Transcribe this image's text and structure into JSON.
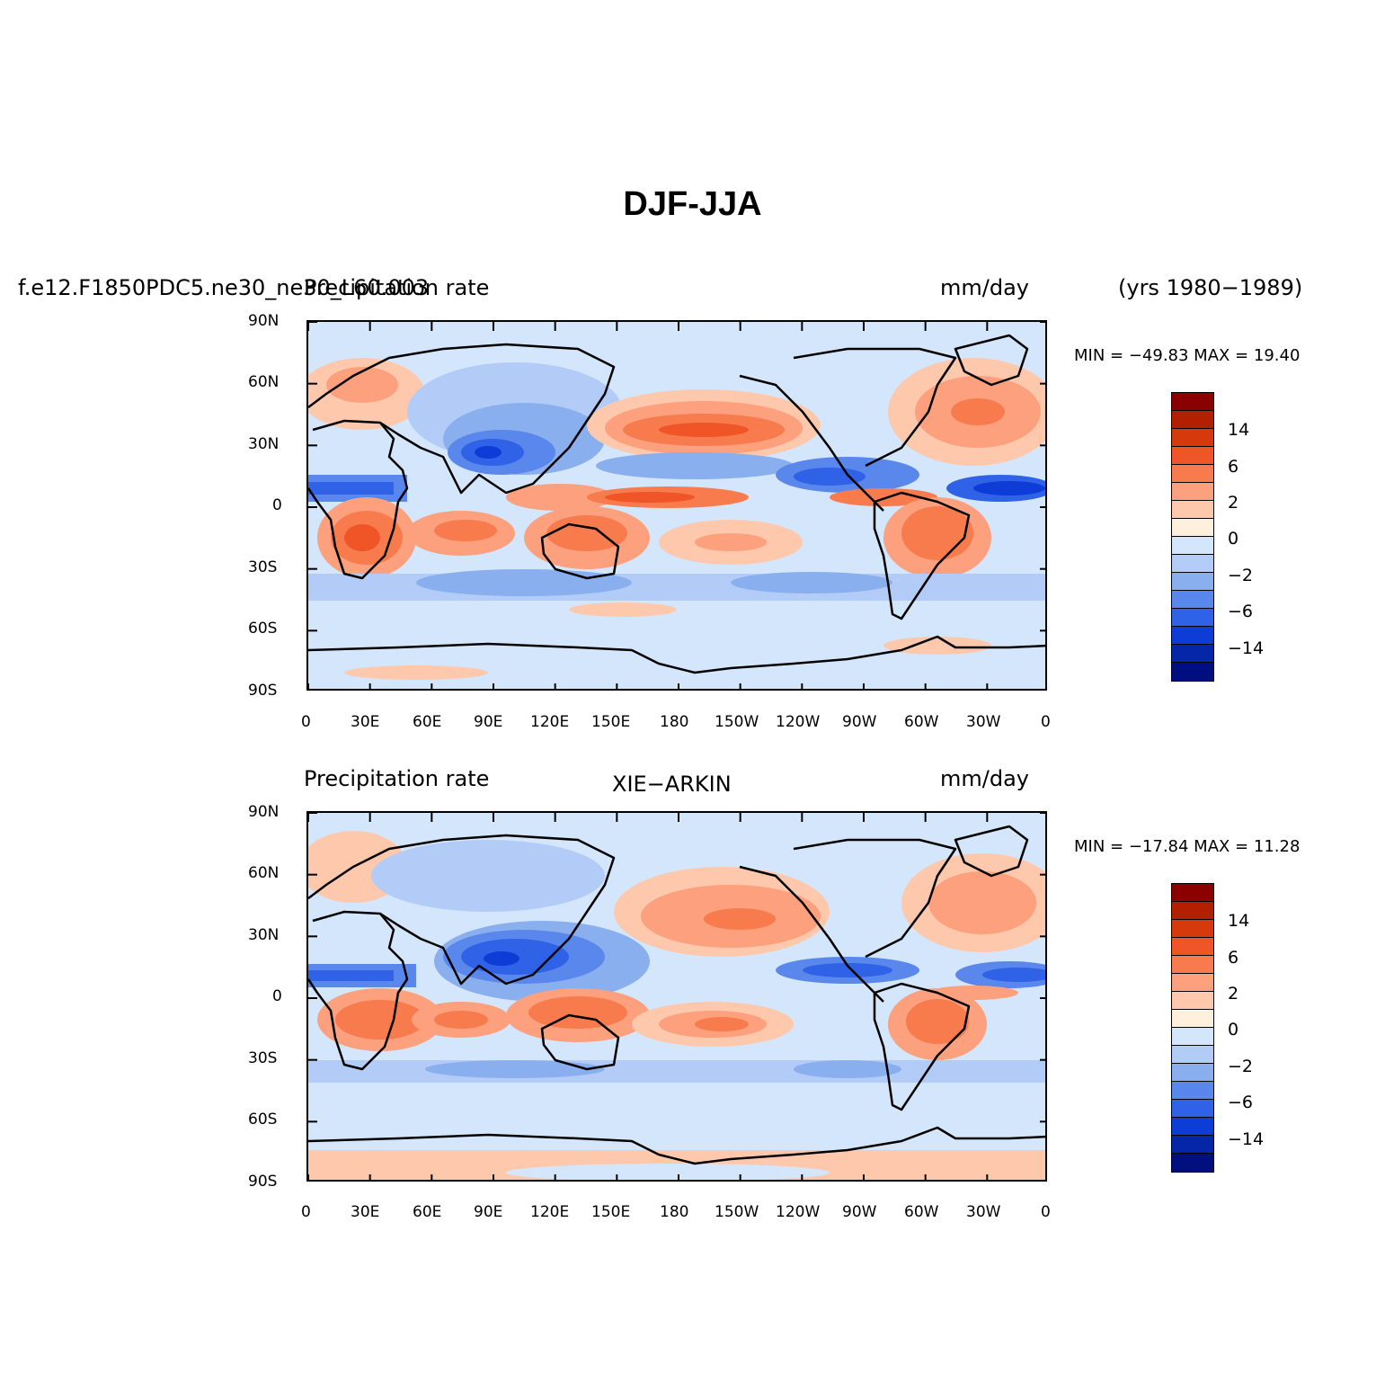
{
  "figure_title": "DJF-JJA",
  "panel1": {
    "case_name": "f.e12.F1850PDC5.ne30_ne30_L60.003",
    "variable": "Precipitation rate",
    "units": "mm/day",
    "years": "(yrs 1980−1989)",
    "stats": "MIN = −49.83 MAX =  19.40"
  },
  "panel2": {
    "variable": "Precipitation rate",
    "source": "XIE−ARKIN",
    "units": "mm/day",
    "stats": "MIN = −17.84 MAX =  11.28"
  },
  "y_ticks": [
    "90N",
    "60N",
    "30N",
    "0",
    "30S",
    "60S",
    "90S"
  ],
  "x_ticks": [
    "0",
    "30E",
    "60E",
    "90E",
    "120E",
    "150E",
    "180",
    "150W",
    "120W",
    "90W",
    "60W",
    "30W",
    "0"
  ],
  "colorbar": {
    "colors": [
      "#8b0000",
      "#b22000",
      "#d63a0c",
      "#ef5527",
      "#f87b4e",
      "#fca07d",
      "#fec8ad",
      "#fff0dd",
      "#d4e6fb",
      "#b3ccf7",
      "#8aafee",
      "#5a87eb",
      "#2f62e6",
      "#0d3cd6",
      "#0626a8",
      "#000f80"
    ],
    "labels": [
      "14",
      "6",
      "2",
      "0",
      "−2",
      "−6",
      "−14"
    ]
  }
}
